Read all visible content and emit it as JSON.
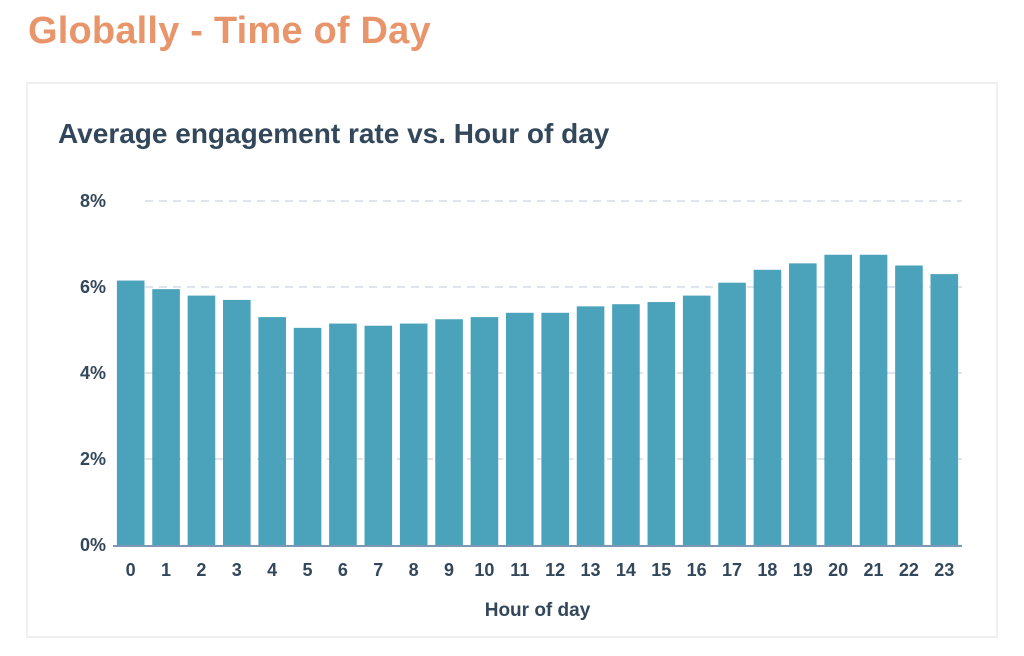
{
  "page": {
    "heading": "Globally - Time of Day"
  },
  "card": {
    "title": "Average engagement rate vs. Hour of day"
  },
  "chart_data": {
    "type": "bar",
    "title": "Average engagement rate vs. Hour of day",
    "xlabel": "Hour of day",
    "ylabel": "",
    "categories": [
      "0",
      "1",
      "2",
      "3",
      "4",
      "5",
      "6",
      "7",
      "8",
      "9",
      "10",
      "11",
      "12",
      "13",
      "14",
      "15",
      "16",
      "17",
      "18",
      "19",
      "20",
      "21",
      "22",
      "23"
    ],
    "values": [
      6.15,
      5.95,
      5.8,
      5.7,
      5.3,
      5.05,
      5.15,
      5.1,
      5.15,
      5.25,
      5.3,
      5.4,
      5.4,
      5.55,
      5.6,
      5.65,
      5.8,
      6.1,
      6.4,
      6.55,
      6.75,
      6.75,
      6.5,
      6.3
    ],
    "y_ticks": [
      "0%",
      "2%",
      "4%",
      "6%",
      "8%"
    ],
    "ylim": [
      0,
      8
    ],
    "grid": true,
    "bar_color": "#4aa3ba",
    "grid_color": "#dfe3eb",
    "axis_color": "#7c98b6"
  },
  "colors": {
    "heading": "#e8956b",
    "text": "#33475b"
  }
}
